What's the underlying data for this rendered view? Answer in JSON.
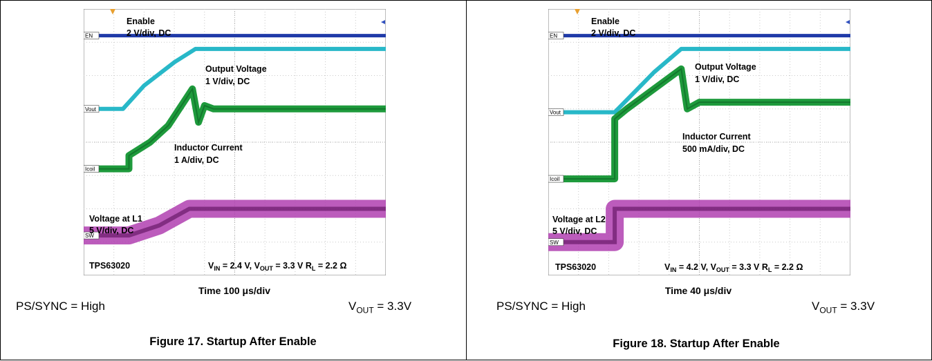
{
  "figures": [
    {
      "scope": {
        "enable_label": "Enable",
        "enable_scale": "2 V/div, DC",
        "vout_label": "Output Voltage",
        "vout_scale": "1 V/div, DC",
        "il_label": "Inductor Current",
        "il_scale": "1 A/div, DC",
        "sw_label": "Voltage at L1",
        "sw_scale": "5 V/div, DC",
        "device": "TPS63020",
        "cond_vin": "V",
        "cond_vin_sub": "IN",
        "cond_vin_val": " = 2.4 V, V",
        "cond_vout_sub": "OUT",
        "cond_vout_val": " = 3.3 V   R",
        "cond_rl_sub": "L",
        "cond_rl_val": " = 2.2 Ω",
        "ch_en": "EN",
        "ch_vout": "Vout",
        "ch_icoil": "Icoil",
        "ch_sw": "SW"
      },
      "time_label": "Time 100 μs/div",
      "cond_left": "PS/SYNC = High",
      "cond_right_v": "V",
      "cond_right_sub": "OUT",
      "cond_right_val": " = 3.3V",
      "caption": "Figure 17. Startup After Enable"
    },
    {
      "scope": {
        "enable_label": "Enable",
        "enable_scale": "2 V/div, DC",
        "vout_label": "Output Voltage",
        "vout_scale": "1 V/div, DC",
        "il_label": "Inductor Current",
        "il_scale": "500 mA/div, DC",
        "sw_label": "Voltage at L2",
        "sw_scale": "5 V/div, DC",
        "device": "TPS63020",
        "cond_vin": "V",
        "cond_vin_sub": "IN",
        "cond_vin_val": " = 4.2 V, V",
        "cond_vout_sub": "OUT",
        "cond_vout_val": " = 3.3 V   R",
        "cond_rl_sub": "L",
        "cond_rl_val": " = 2.2 Ω",
        "ch_en": "EN",
        "ch_vout": "Vout",
        "ch_icoil": "Icoil",
        "ch_sw": "SW"
      },
      "time_label": "Time 40 μs/div",
      "cond_left": "PS/SYNC = High",
      "cond_right_v": "V",
      "cond_right_sub": "OUT",
      "cond_right_val": " = 3.3V",
      "caption": "Figure 18. Startup After Enable"
    }
  ],
  "chart_data": [
    {
      "type": "line",
      "x_unit_per_div": "100 μs",
      "x_divisions": 10,
      "y_divisions": 8,
      "grid": true,
      "colors": {
        "enable": "#1f3aa8",
        "vout": "#28b8c8",
        "inductor": "#1e9a3c",
        "sw": "#b040b0"
      },
      "series": [
        {
          "name": "Enable",
          "x_div": [
            0,
            0.35,
            0.35,
            10
          ],
          "y_div": [
            7.2,
            7.2,
            7.2,
            7.2
          ]
        },
        {
          "name": "Output Voltage",
          "x_div": [
            0,
            1.3,
            2.0,
            3.0,
            3.7,
            10
          ],
          "y_div": [
            5.0,
            5.0,
            5.7,
            6.4,
            6.8,
            6.8
          ]
        },
        {
          "name": "Inductor Current",
          "x_div": [
            0,
            1.5,
            1.5,
            2.2,
            2.8,
            3.6,
            3.8,
            4.0,
            4.3,
            10
          ],
          "y_div": [
            3.2,
            3.2,
            3.6,
            4.0,
            4.5,
            5.6,
            4.6,
            5.1,
            5.0,
            5.0
          ]
        },
        {
          "name": "Voltage at L1",
          "x_div": [
            0,
            1.5,
            2.5,
            3.5,
            10
          ],
          "y_div": [
            1.2,
            1.2,
            1.5,
            2.0,
            2.0
          ]
        }
      ]
    },
    {
      "type": "line",
      "x_unit_per_div": "40 μs",
      "x_divisions": 10,
      "y_divisions": 8,
      "grid": true,
      "colors": {
        "enable": "#1f3aa8",
        "vout": "#28b8c8",
        "inductor": "#1e9a3c",
        "sw": "#b040b0"
      },
      "series": [
        {
          "name": "Enable",
          "x_div": [
            0,
            0.4,
            0.4,
            10
          ],
          "y_div": [
            7.2,
            7.2,
            7.2,
            7.2
          ]
        },
        {
          "name": "Output Voltage",
          "x_div": [
            0,
            2.2,
            3.5,
            4.4,
            10
          ],
          "y_div": [
            4.9,
            4.9,
            6.1,
            6.8,
            6.8
          ]
        },
        {
          "name": "Inductor Current",
          "x_div": [
            0,
            2.2,
            2.2,
            2.6,
            4.4,
            4.6,
            5.0,
            10
          ],
          "y_div": [
            2.9,
            2.9,
            4.7,
            5.0,
            6.2,
            5.0,
            5.2,
            5.2
          ]
        },
        {
          "name": "Voltage at L2",
          "x_div": [
            0,
            2.2,
            2.2,
            10
          ],
          "y_div": [
            1.0,
            1.0,
            2.0,
            2.0
          ]
        }
      ]
    }
  ]
}
